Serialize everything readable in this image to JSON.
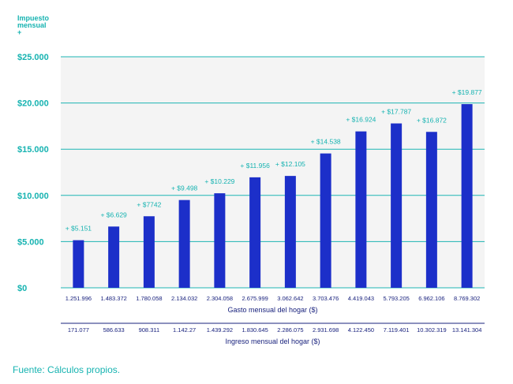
{
  "chart_data": {
    "type": "bar",
    "ytitle_lines": [
      "Impuesto",
      "mensual",
      "+"
    ],
    "xlabel": "Gasto mensual del hogar ($)",
    "x2label": "Ingreso mensual del hogar ($)",
    "ylim": [
      0,
      25000
    ],
    "yticks": [
      0,
      5000,
      10000,
      15000,
      20000,
      25000
    ],
    "ytick_labels": [
      "$0",
      "$5.000",
      "$10.000",
      "$15.000",
      "$20.000",
      "$25.000"
    ],
    "categories": [
      "1.251.996",
      "1.483.372",
      "1.780.058",
      "2.134.032",
      "2.304.058",
      "2.675.999",
      "3.062.642",
      "3.703.476",
      "4.419.043",
      "5.793.205",
      "6.962.106",
      "8.769.302"
    ],
    "secondary_categories": [
      "171.077",
      "586.633",
      "908.311",
      "1.142.27",
      "1.439.292",
      "1.830.645",
      "2.286.075",
      "2.931.698",
      "4.122.450",
      "7.119.401",
      "10.302.319",
      "13.141.304"
    ],
    "values": [
      5151,
      6629,
      7742,
      9498,
      10229,
      11956,
      12105,
      14538,
      16924,
      17787,
      16872,
      19877
    ],
    "value_labels": [
      "+ $5.151",
      "+ $6.629",
      "+ $7742",
      "+ $9.498",
      "+ $10.229",
      "+ $11.956",
      "+ $12.105",
      "+ $14.538",
      "+ $16.924",
      "+ $17.787",
      "+ $16.872",
      "+ $19.877"
    ],
    "colors": {
      "bar": "#1c2fc9",
      "grid": "#1cb5b3",
      "text_accent": "#16b3b1",
      "axis_text": "#1a237e",
      "band": "#f4f4f4"
    },
    "grid": true
  },
  "source": "Fuente: Cálculos propios."
}
